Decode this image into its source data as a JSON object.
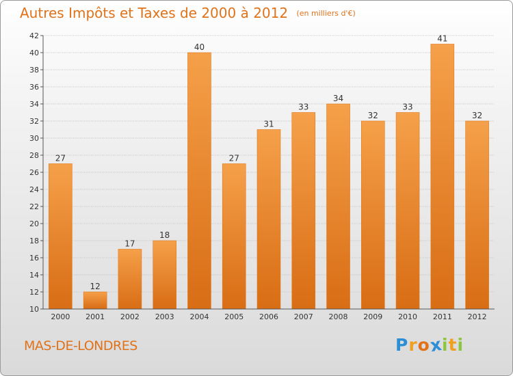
{
  "chart_data": {
    "type": "bar",
    "title": "Autres Impôts et Taxes de 2000 à 2012",
    "subtitle": "(en milliers d'€)",
    "categories": [
      "2000",
      "2001",
      "2002",
      "2003",
      "2004",
      "2005",
      "2006",
      "2007",
      "2008",
      "2009",
      "2010",
      "2011",
      "2012"
    ],
    "values": [
      27,
      12,
      17,
      18,
      40,
      27,
      31,
      33,
      34,
      32,
      33,
      41,
      32
    ],
    "ylim": [
      10,
      42
    ],
    "yticks": [
      10,
      12,
      14,
      16,
      18,
      20,
      22,
      24,
      26,
      28,
      30,
      32,
      34,
      36,
      38,
      40,
      42
    ],
    "grid": true,
    "bar_color": "#f28a2a",
    "bar_color_top": "#f5a04a",
    "bar_color_bottom": "#d86d14"
  },
  "commune": "MAS-DE-LONDRES",
  "logo": {
    "letters": [
      {
        "char": "P",
        "color": "#2c8fd6"
      },
      {
        "char": "r",
        "color": "#f0a020"
      },
      {
        "char": "o",
        "color": "#e0721a"
      },
      {
        "char": "x",
        "color": "#2c8fd6"
      },
      {
        "char": "i",
        "color": "#8cc63f"
      },
      {
        "char": "t",
        "color": "#f0a020"
      },
      {
        "char": "i",
        "color": "#8cc63f"
      }
    ]
  }
}
